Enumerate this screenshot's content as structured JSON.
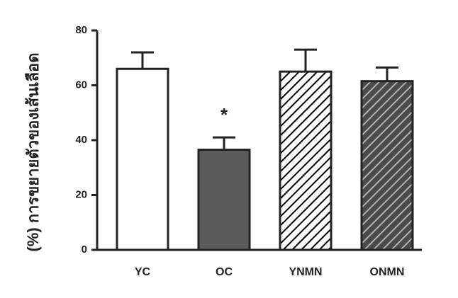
{
  "chart_data": {
    "type": "bar",
    "y_label": "(%) การขยายตัวของเส้นเลือด",
    "categories": [
      "YC",
      "OC",
      "YNMN",
      "ONMN"
    ],
    "values": [
      66,
      36.5,
      65,
      61.5
    ],
    "errors": [
      6,
      4.5,
      8,
      5
    ],
    "colors": [
      "#ffffff",
      "#5a5a5a",
      "#ffffff",
      "#4a4a4a"
    ],
    "hatch": [
      false,
      false,
      true,
      true
    ],
    "hatch_colors": [
      "#000000",
      "#000000",
      "#000000",
      "#b0b0b0"
    ],
    "annotations": [
      {
        "text": "*",
        "category": 1
      }
    ],
    "ylim": [
      0,
      80
    ],
    "yticks": [
      0,
      20,
      40,
      60,
      80
    ],
    "grid": false
  }
}
